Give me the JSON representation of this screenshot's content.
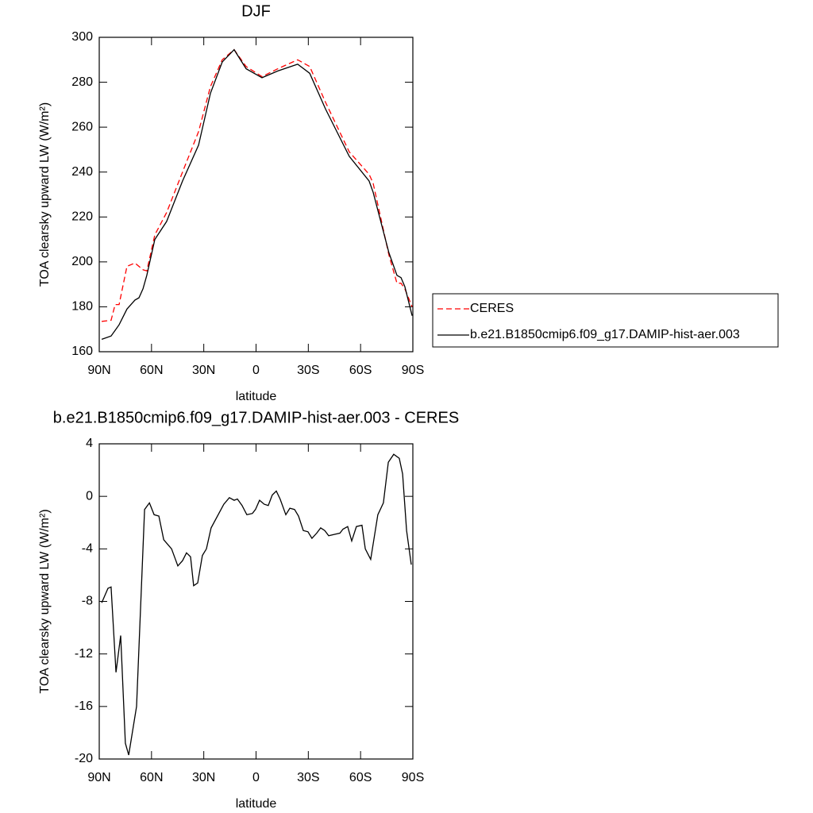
{
  "chart_data": [
    {
      "type": "line",
      "title": "DJF",
      "xlabel": "latitude",
      "ylabel": "TOA clearsky upward LW (W/m²)",
      "x": [
        88.6,
        83.2,
        80.9,
        78.6,
        74.1,
        69.5,
        67.2,
        64.9,
        62.7,
        58.1,
        51.3,
        42.2,
        33.0,
        26.2,
        19.4,
        12.6,
        5.7,
        -3.4,
        -12.5,
        -23.9,
        -30.8,
        -39.9,
        -53.5,
        -64.9,
        -67.2,
        -76.3,
        -80.9,
        -83.2,
        -85.4,
        -89.6
      ],
      "series": [
        {
          "name": "CERES",
          "color": "#ff0000",
          "line_style": "dashed",
          "values": [
            173.5,
            174,
            181,
            181,
            198,
            199.5,
            198,
            196.5,
            196,
            212,
            222,
            240,
            258,
            278,
            290,
            294.5,
            287,
            282.5,
            286,
            290,
            287,
            271,
            249,
            239,
            235,
            203,
            190.5,
            190.5,
            188,
            180
          ]
        },
        {
          "name": "b.e21.B1850cmip6.f09_g17.DAMIP-hist-aer.003",
          "color": "#000000",
          "line_style": "solid",
          "values": [
            165.5,
            167,
            169.5,
            172,
            179,
            183,
            184,
            188,
            194,
            210,
            218,
            236,
            252,
            275,
            289,
            294.5,
            286,
            282,
            285,
            288,
            284,
            268,
            247,
            236,
            231,
            204,
            194,
            193,
            189,
            176
          ]
        }
      ],
      "xlim": [
        90,
        -90
      ],
      "xticks": [
        {
          "value": 90,
          "label": "90N"
        },
        {
          "value": 60,
          "label": "60N"
        },
        {
          "value": 30,
          "label": "30N"
        },
        0,
        {
          "value": -30,
          "label": "30S"
        },
        {
          "value": -60,
          "label": "60S"
        },
        {
          "value": -90,
          "label": "90S"
        }
      ],
      "ylim": [
        160,
        300
      ],
      "yticks": [
        160,
        180,
        200,
        220,
        240,
        260,
        280,
        300
      ],
      "legend": "right"
    },
    {
      "type": "line",
      "title": "b.e21.B1850cmip6.f09_g17.DAMIP-hist-aer.003 - CERES",
      "xlabel": "latitude",
      "ylabel": "TOA clearsky upward LW (W/m²)",
      "x": [
        88.6,
        85.0,
        83.2,
        80.4,
        77.7,
        75.0,
        73.1,
        68.6,
        64.0,
        61.2,
        58.5,
        55.8,
        53.0,
        48.5,
        44.9,
        42.2,
        39.9,
        37.6,
        35.8,
        33.5,
        30.8,
        28.5,
        25.8,
        18.5,
        15.3,
        12.6,
        10.7,
        8.0,
        5.3,
        2.1,
        0.3,
        -2.0,
        -4.7,
        -7.0,
        -9.3,
        -11.6,
        -13.8,
        -17.1,
        -19.4,
        -22.1,
        -24.4,
        -27.1,
        -29.8,
        -32.1,
        -34.8,
        -37.1,
        -39.4,
        -41.7,
        -44.9,
        -48.1,
        -49.9,
        -52.6,
        -54.9,
        -57.6,
        -60.8,
        -62.7,
        -65.8,
        -69.9,
        -73.1,
        -75.9,
        -79.0,
        -82.2,
        -84.1,
        -86.4,
        -89.1
      ],
      "values": [
        -8.1,
        -7.0,
        -6.9,
        -13.4,
        -10.6,
        -18.8,
        -19.7,
        -16,
        -1,
        -0.5,
        -1.4,
        -1.5,
        -3.3,
        -4,
        -5.3,
        -4.9,
        -4.3,
        -4.6,
        -6.8,
        -6.6,
        -4.5,
        -4,
        -2.4,
        -0.6,
        -0.1,
        -0.3,
        -0.2,
        -0.7,
        -1.4,
        -1.3,
        -1.0,
        -0.3,
        -0.6,
        -0.7,
        0.1,
        0.4,
        -0.2,
        -1.4,
        -0.9,
        -1.0,
        -1.5,
        -2.6,
        -2.7,
        -3.2,
        -2.8,
        -2.4,
        -2.6,
        -3.0,
        -2.9,
        -2.8,
        -2.5,
        -2.3,
        -3.4,
        -2.3,
        -2.2,
        -4.0,
        -4.8,
        -1.4,
        -0.5,
        2.6,
        3.2,
        2.9,
        1.7,
        -2.6,
        -5.2
      ],
      "color": "#000000",
      "xlim": [
        90,
        -90
      ],
      "xticks": [
        {
          "value": 90,
          "label": "90N"
        },
        {
          "value": 60,
          "label": "60N"
        },
        {
          "value": 30,
          "label": "30N"
        },
        0,
        {
          "value": -30,
          "label": "30S"
        },
        {
          "value": -60,
          "label": "60S"
        },
        {
          "value": -90,
          "label": "90S"
        }
      ],
      "ylim": [
        -20,
        4
      ],
      "yticks": [
        -20,
        -16,
        -12,
        -8,
        -4,
        0,
        4
      ]
    }
  ]
}
